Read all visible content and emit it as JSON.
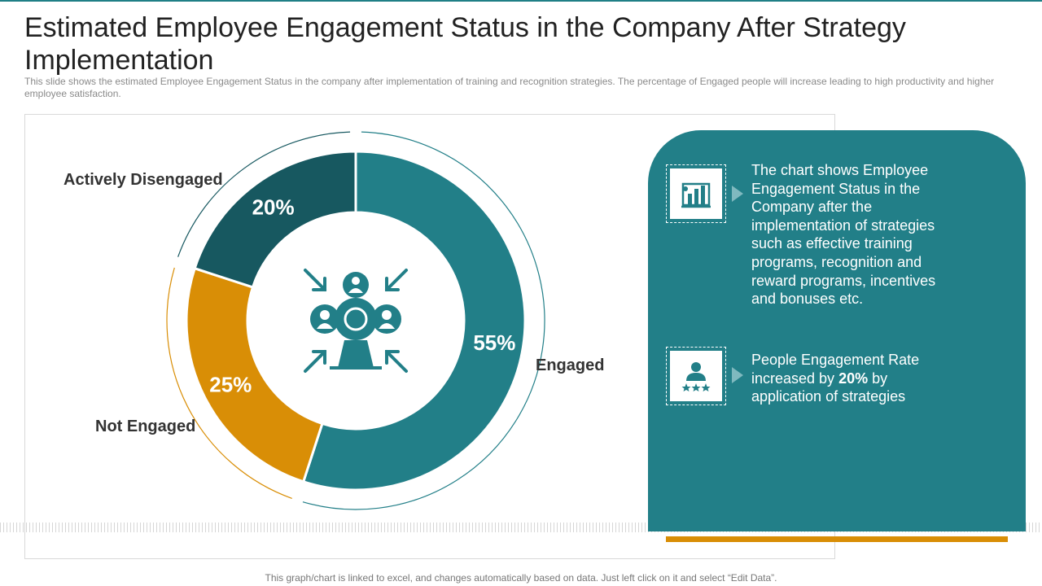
{
  "title": "Estimated Employee Engagement Status in the Company After Strategy Implementation",
  "subtitle": "This slide shows the estimated Employee Engagement Status in the company after implementation of training and recognition strategies. The percentage of Engaged people will increase leading to high productivity and higher employee satisfaction.",
  "chart_data": {
    "type": "pie",
    "variant": "donut",
    "title": "",
    "categories": [
      "Engaged",
      "Not Engaged",
      "Actively Disengaged"
    ],
    "values": [
      55,
      25,
      20
    ],
    "value_labels": [
      "55%",
      "25%",
      "20%"
    ],
    "unit": "%",
    "colors": [
      "#227f88",
      "#d98e06",
      "#175860"
    ],
    "center_icon": "team-engagement-icon",
    "legend": "none"
  },
  "panel": {
    "accent": "#227f88",
    "items": [
      {
        "icon": "bar-chart-presentation-icon",
        "text": "The chart shows Employee Engagement Status in the Company after the implementation of strategies such as effective training programs, recognition and reward programs, incentives and bonuses etc."
      },
      {
        "icon": "person-rating-icon",
        "text_before": "People Engagement Rate increased by ",
        "highlight": "20%",
        "text_after": " by application of strategies"
      }
    ]
  },
  "footer": "This graph/chart is linked to excel, and changes automatically based on data. Just left click on it and select “Edit Data”."
}
